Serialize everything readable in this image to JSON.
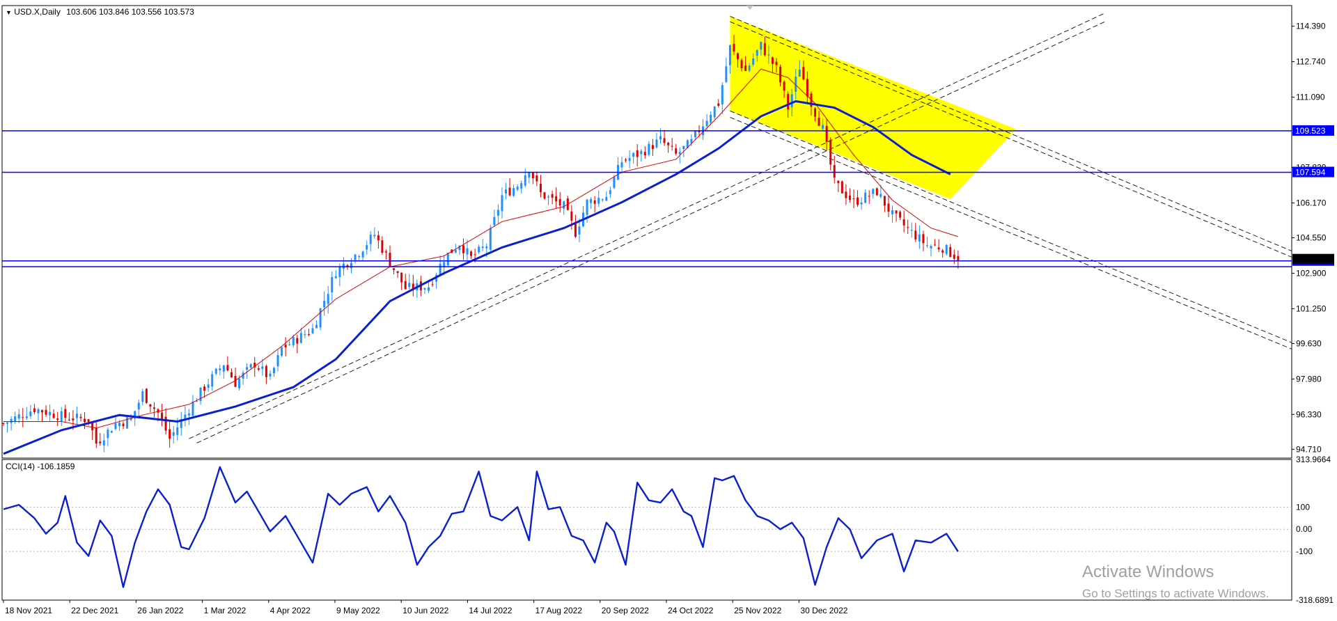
{
  "header": {
    "symbol_line": "USD.X,Daily",
    "ohlc": "103.606 103.846 103.556 103.573"
  },
  "indicator": {
    "label": "CCI(14) -106.1859"
  },
  "watermark": {
    "title": "Activate Windows",
    "subtitle": "Go to Settings to activate Windows."
  },
  "colors": {
    "bull": "#1e90ff",
    "bear": "#e00000",
    "ma_fast": "#e00000",
    "ma_slow": "#0a1fd0",
    "hline": "#0000ff",
    "channel": "#ffff00",
    "cci": "#0a1fd0",
    "trend": "#222222"
  },
  "chart_data": [
    {
      "type": "candlestick",
      "title": "USD.X,Daily",
      "price_axis_ticks": [
        "114.390",
        "112.740",
        "111.090",
        "107.820",
        "106.170",
        "104.550",
        "102.900",
        "101.250",
        "99.630",
        "97.980",
        "96.330",
        "94.710"
      ],
      "date_labels": [
        "18 Nov 2021",
        "22 Dec 2021",
        "26 Jan 2022",
        "1 Mar 2022",
        "4 Apr 2022",
        "9 May 2022",
        "10 Jun 2022",
        "14 Jul 2022",
        "17 Aug 2022",
        "20 Sep 2022",
        "24 Oct 2022",
        "25 Nov 2022",
        "30 Dec 2022"
      ],
      "horizontal_levels": [
        {
          "value": 109.523,
          "label": "109.523"
        },
        {
          "value": 107.594,
          "label": "107.594"
        },
        {
          "value": 103.473,
          "label": "103.473"
        },
        {
          "value": 103.2,
          "label": ""
        }
      ],
      "current_price": "103.573",
      "close_path": [
        [
          0,
          95.9
        ],
        [
          8,
          96.6
        ],
        [
          16,
          96.2
        ],
        [
          22,
          96.1
        ],
        [
          24,
          95.0
        ],
        [
          29,
          95.9
        ],
        [
          33,
          96.1
        ],
        [
          36,
          97.3
        ],
        [
          40,
          96.4
        ],
        [
          43,
          95.2
        ],
        [
          48,
          96.6
        ],
        [
          52,
          97.6
        ],
        [
          57,
          98.7
        ],
        [
          60,
          97.8
        ],
        [
          65,
          98.7
        ],
        [
          69,
          98.0
        ],
        [
          72,
          99.4
        ],
        [
          80,
          100.3
        ],
        [
          86,
          103.0
        ],
        [
          92,
          103.9
        ],
        [
          96,
          104.7
        ],
        [
          100,
          103.4
        ],
        [
          104,
          102.2
        ],
        [
          110,
          102.3
        ],
        [
          114,
          103.6
        ],
        [
          118,
          104.3
        ],
        [
          121,
          103.6
        ],
        [
          125,
          104.2
        ],
        [
          129,
          106.5
        ],
        [
          133,
          107.0
        ],
        [
          136,
          107.8
        ],
        [
          139,
          106.6
        ],
        [
          145,
          106.0
        ],
        [
          148,
          104.8
        ],
        [
          151,
          106.2
        ],
        [
          156,
          106.5
        ],
        [
          160,
          108.1
        ],
        [
          165,
          108.5
        ],
        [
          170,
          109.1
        ],
        [
          174,
          108.4
        ],
        [
          178,
          109.0
        ],
        [
          183,
          110.4
        ],
        [
          185,
          110.8
        ],
        [
          188,
          113.4
        ],
        [
          192,
          112.3
        ],
        [
          196,
          113.5
        ],
        [
          200,
          112.4
        ],
        [
          203,
          110.6
        ],
        [
          206,
          112.5
        ],
        [
          209,
          110.8
        ],
        [
          212,
          109.6
        ],
        [
          215,
          107.1
        ],
        [
          220,
          106.2
        ],
        [
          226,
          106.7
        ],
        [
          230,
          105.6
        ],
        [
          235,
          104.8
        ],
        [
          239,
          104.2
        ],
        [
          243,
          104.1
        ],
        [
          247,
          103.6
        ]
      ],
      "ma_fast": [
        [
          0,
          96.0
        ],
        [
          15,
          96.0
        ],
        [
          24,
          95.7
        ],
        [
          36,
          96.3
        ],
        [
          48,
          96.8
        ],
        [
          60,
          97.9
        ],
        [
          72,
          99.5
        ],
        [
          86,
          101.7
        ],
        [
          100,
          103.2
        ],
        [
          114,
          103.7
        ],
        [
          129,
          105.3
        ],
        [
          145,
          106.0
        ],
        [
          160,
          107.6
        ],
        [
          174,
          108.2
        ],
        [
          185,
          110.2
        ],
        [
          196,
          112.4
        ],
        [
          203,
          112.0
        ],
        [
          210,
          110.8
        ],
        [
          220,
          108.4
        ],
        [
          230,
          106.3
        ],
        [
          240,
          105.0
        ],
        [
          247,
          104.6
        ]
      ],
      "ma_slow": [
        [
          0,
          94.5
        ],
        [
          15,
          95.6
        ],
        [
          30,
          96.3
        ],
        [
          45,
          96.0
        ],
        [
          60,
          96.7
        ],
        [
          75,
          97.6
        ],
        [
          86,
          98.9
        ],
        [
          100,
          101.6
        ],
        [
          114,
          102.9
        ],
        [
          129,
          104.1
        ],
        [
          145,
          105.0
        ],
        [
          160,
          106.2
        ],
        [
          174,
          107.5
        ],
        [
          185,
          108.7
        ],
        [
          196,
          110.2
        ],
        [
          205,
          110.9
        ],
        [
          215,
          110.6
        ],
        [
          225,
          109.7
        ],
        [
          235,
          108.4
        ],
        [
          245,
          107.5
        ]
      ],
      "channel_polygon": [
        [
          188,
          114.85
        ],
        [
          262,
          109.6
        ],
        [
          245,
          106.35
        ],
        [
          188,
          110.45
        ]
      ],
      "trendlines": [
        {
          "from": [
            48,
            95.2
          ],
          "to": [
            285,
            115.0
          ]
        },
        {
          "from": [
            50,
            95.0
          ],
          "to": [
            285,
            114.6
          ]
        },
        {
          "from": [
            188,
            114.85
          ],
          "to": [
            395,
            99.3
          ]
        },
        {
          "from": [
            188,
            114.6
          ],
          "to": [
            395,
            99.0
          ]
        },
        {
          "from": [
            188,
            110.45
          ],
          "to": [
            395,
            95.1
          ]
        },
        {
          "from": [
            188,
            110.15
          ],
          "to": [
            395,
            94.8
          ]
        }
      ],
      "ylim": [
        94.3,
        115.35
      ]
    },
    {
      "type": "line",
      "title": "CCI(14) -106.1859",
      "series_name": "CCI(14)",
      "ylim": [
        -318.6891,
        313.9664
      ],
      "axis_ticks": [
        "313.9664",
        "100",
        "0.00",
        "-100",
        "-318.6891"
      ],
      "reference_levels": [
        100,
        0,
        -100
      ],
      "values": [
        [
          0,
          90
        ],
        [
          4,
          110
        ],
        [
          8,
          50
        ],
        [
          11,
          -20
        ],
        [
          14,
          30
        ],
        [
          16,
          150
        ],
        [
          19,
          -60
        ],
        [
          22,
          -120
        ],
        [
          25,
          40
        ],
        [
          28,
          -30
        ],
        [
          31,
          -260
        ],
        [
          34,
          -60
        ],
        [
          37,
          80
        ],
        [
          40,
          180
        ],
        [
          43,
          110
        ],
        [
          46,
          -80
        ],
        [
          48,
          -90
        ],
        [
          52,
          50
        ],
        [
          56,
          280
        ],
        [
          60,
          120
        ],
        [
          63,
          170
        ],
        [
          66,
          80
        ],
        [
          69,
          -10
        ],
        [
          73,
          60
        ],
        [
          76,
          -30
        ],
        [
          80,
          -150
        ],
        [
          84,
          160
        ],
        [
          87,
          110
        ],
        [
          90,
          160
        ],
        [
          94,
          190
        ],
        [
          97,
          80
        ],
        [
          100,
          150
        ],
        [
          104,
          30
        ],
        [
          107,
          -160
        ],
        [
          110,
          -80
        ],
        [
          113,
          -30
        ],
        [
          116,
          70
        ],
        [
          119,
          80
        ],
        [
          123,
          260
        ],
        [
          126,
          60
        ],
        [
          129,
          40
        ],
        [
          133,
          100
        ],
        [
          136,
          -50
        ],
        [
          138,
          260
        ],
        [
          141,
          90
        ],
        [
          144,
          100
        ],
        [
          147,
          -30
        ],
        [
          150,
          -50
        ],
        [
          153,
          -150
        ],
        [
          156,
          30
        ],
        [
          158,
          -10
        ],
        [
          161,
          -160
        ],
        [
          164,
          210
        ],
        [
          167,
          130
        ],
        [
          170,
          120
        ],
        [
          173,
          180
        ],
        [
          176,
          80
        ],
        [
          178,
          60
        ],
        [
          181,
          -80
        ],
        [
          184,
          230
        ],
        [
          186,
          220
        ],
        [
          189,
          240
        ],
        [
          192,
          130
        ],
        [
          195,
          60
        ],
        [
          198,
          40
        ],
        [
          201,
          0
        ],
        [
          204,
          30
        ],
        [
          207,
          -40
        ],
        [
          210,
          -250
        ],
        [
          213,
          -80
        ],
        [
          216,
          50
        ],
        [
          219,
          0
        ],
        [
          222,
          -130
        ],
        [
          226,
          -50
        ],
        [
          230,
          -20
        ],
        [
          233,
          -190
        ],
        [
          236,
          -50
        ],
        [
          240,
          -60
        ],
        [
          244,
          -20
        ],
        [
          247,
          -100
        ]
      ]
    }
  ]
}
